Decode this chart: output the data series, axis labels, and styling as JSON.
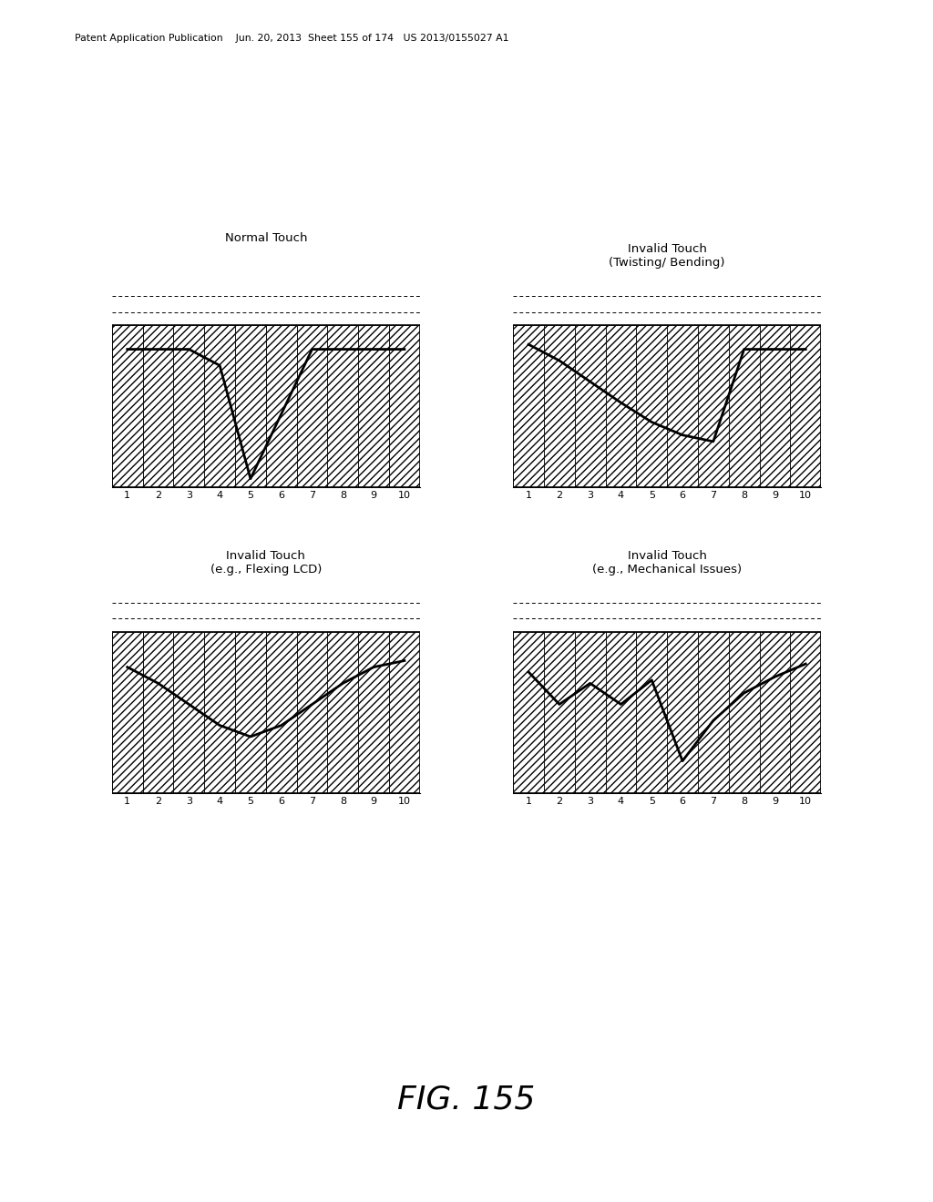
{
  "header_text": "Patent Application Publication    Jun. 20, 2013  Sheet 155 of 174   US 2013/0155027 A1",
  "figure_label": "FIG. 155",
  "background_color": "#ffffff",
  "charts": [
    {
      "title": "Normal Touch",
      "title_line2": null,
      "x_ticks": [
        1,
        2,
        3,
        4,
        5,
        6,
        7,
        8,
        9,
        10
      ],
      "signal_y": [
        0.85,
        0.85,
        0.85,
        0.75,
        0.05,
        0.45,
        0.85,
        0.85,
        0.85,
        0.85
      ],
      "signal_x": [
        1,
        2,
        3,
        4,
        5,
        6,
        7,
        8,
        9,
        10
      ]
    },
    {
      "title": "Invalid Touch",
      "title_line2": "(Twisting/ Bending)",
      "x_ticks": [
        1,
        2,
        3,
        4,
        5,
        6,
        7,
        8,
        9,
        10
      ],
      "signal_y": [
        0.88,
        0.78,
        0.65,
        0.52,
        0.4,
        0.32,
        0.28,
        0.85,
        0.85,
        0.85
      ],
      "signal_x": [
        1,
        2,
        3,
        4,
        5,
        6,
        7,
        8,
        9,
        10
      ]
    },
    {
      "title": "Invalid Touch",
      "title_line2": "(e.g., Flexing LCD)",
      "x_ticks": [
        1,
        2,
        3,
        4,
        5,
        6,
        7,
        8,
        9,
        10
      ],
      "signal_y": [
        0.78,
        0.68,
        0.55,
        0.42,
        0.35,
        0.42,
        0.55,
        0.68,
        0.78,
        0.82
      ],
      "signal_x": [
        1,
        2,
        3,
        4,
        5,
        6,
        7,
        8,
        9,
        10
      ]
    },
    {
      "title": "Invalid Touch",
      "title_line2": "(e.g., Mechanical Issues)",
      "x_ticks": [
        1,
        2,
        3,
        4,
        5,
        6,
        7,
        8,
        9,
        10
      ],
      "signal_y": [
        0.75,
        0.55,
        0.68,
        0.55,
        0.7,
        0.2,
        0.45,
        0.62,
        0.72,
        0.8
      ],
      "signal_x": [
        1,
        2,
        3,
        4,
        5,
        6,
        7,
        8,
        9,
        10
      ]
    }
  ]
}
